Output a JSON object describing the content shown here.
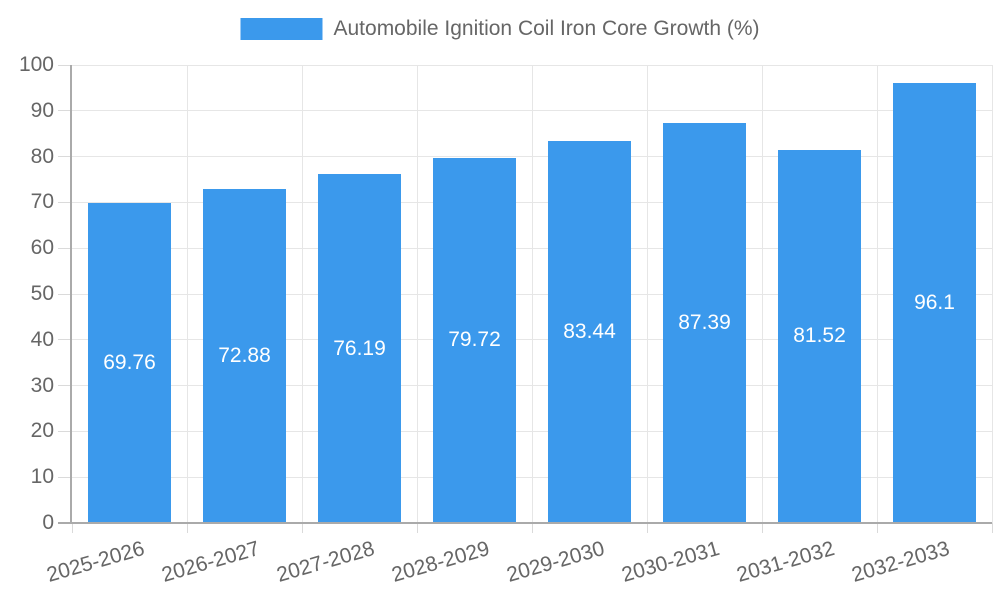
{
  "chart_data": {
    "type": "bar",
    "title": "Automobile Ignition Coil Iron Core Growth (%)",
    "legend": {
      "label": "Automobile Ignition Coil Iron Core Growth (%)",
      "position": "top"
    },
    "categories": [
      "2025-2026",
      "2026-2027",
      "2027-2028",
      "2028-2029",
      "2029-2030",
      "2030-2031",
      "2031-2032",
      "2032-2033"
    ],
    "values": [
      69.76,
      72.88,
      76.19,
      79.72,
      83.44,
      87.39,
      81.52,
      96.1
    ],
    "value_labels": [
      "69.76",
      "72.88",
      "76.19",
      "79.72",
      "83.44",
      "87.39",
      "81.52",
      "96.1"
    ],
    "xlabel": "",
    "ylabel": "",
    "ylim": [
      0,
      100
    ],
    "ytick_step": 10,
    "yticks": [
      0,
      10,
      20,
      30,
      40,
      50,
      60,
      70,
      80,
      90,
      100
    ],
    "grid": true,
    "x_label_rotation_deg": -16,
    "value_labels_inside_bars": true,
    "colors": {
      "bar": "#3B99EC",
      "grid": "#E6E6E6",
      "tick": "#DADADA",
      "axis": "#AAAAAA",
      "axis_text": "#666666",
      "value_label_text": "#FFFFFF",
      "background": "#FFFFFF"
    }
  }
}
